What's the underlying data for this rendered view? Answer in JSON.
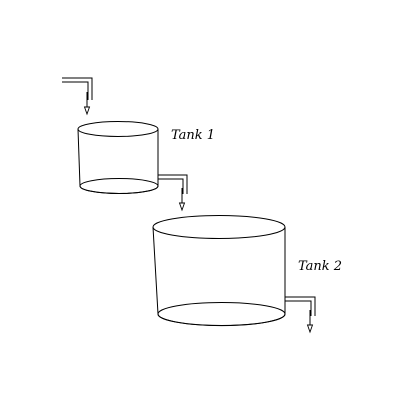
{
  "diagram": {
    "tanks": [
      {
        "label": "Tank 1"
      },
      {
        "label": "Tank 2"
      }
    ],
    "colors": {
      "line": "#000000",
      "background": "#ffffff"
    }
  }
}
